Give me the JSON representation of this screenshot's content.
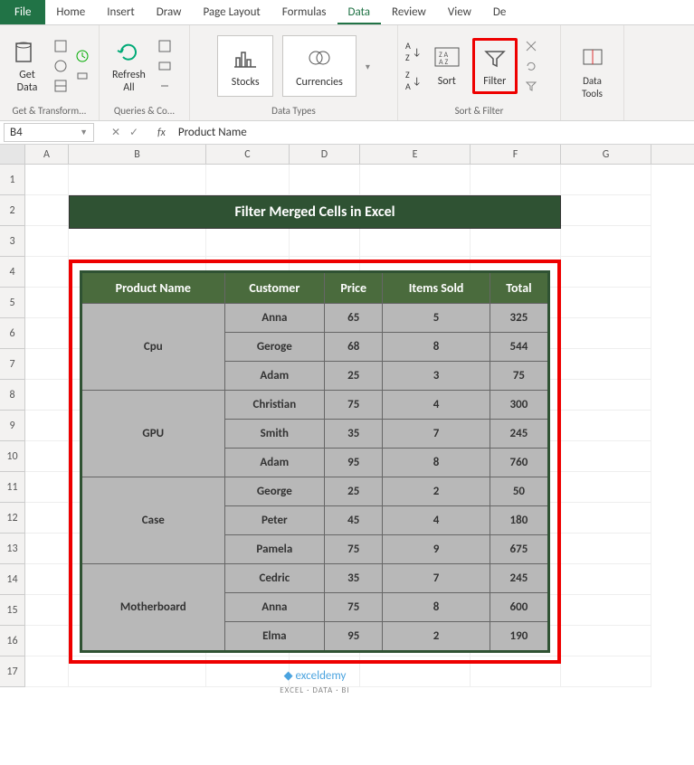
{
  "tabs": {
    "file": "File",
    "items": [
      "Home",
      "Insert",
      "Draw",
      "Page Layout",
      "Formulas",
      "Data",
      "Review",
      "View",
      "De"
    ],
    "active": "Data"
  },
  "ribbon": {
    "groups": {
      "getTransform": {
        "label": "Get & Transform...",
        "getData": "Get\nData"
      },
      "queries": {
        "label": "Queries & Co...",
        "refresh": "Refresh\nAll"
      },
      "dataTypes": {
        "label": "Data Types",
        "stocks": "Stocks",
        "currencies": "Currencies"
      },
      "sortFilter": {
        "label": "Sort & Filter",
        "sortAZ": "A→Z",
        "sortZA": "Z→A",
        "sort": "Sort",
        "filter": "Filter"
      },
      "dataTools": {
        "label": "Data Tools"
      }
    }
  },
  "formulaBar": {
    "cellRef": "B4",
    "fx": "fx",
    "value": "Product Name"
  },
  "columns": [
    "A",
    "B",
    "C",
    "D",
    "E",
    "F",
    "G"
  ],
  "rows": [
    1,
    2,
    3,
    4,
    5,
    6,
    7,
    8,
    9,
    10,
    11,
    12,
    13,
    14,
    15,
    16,
    17
  ],
  "banner": "Filter Merged Cells in Excel",
  "table": {
    "headers": [
      "Product Name",
      "Customer",
      "Price",
      "Items Sold",
      "Total"
    ],
    "groups": [
      {
        "product": "Cpu",
        "rows": [
          {
            "customer": "Anna",
            "price": 65,
            "items": 5,
            "total": 325
          },
          {
            "customer": "Geroge",
            "price": 68,
            "items": 8,
            "total": 544
          },
          {
            "customer": "Adam",
            "price": 25,
            "items": 3,
            "total": 75
          }
        ]
      },
      {
        "product": "GPU",
        "rows": [
          {
            "customer": "Christian",
            "price": 75,
            "items": 4,
            "total": 300
          },
          {
            "customer": "Smith",
            "price": 35,
            "items": 7,
            "total": 245
          },
          {
            "customer": "Adam",
            "price": 95,
            "items": 8,
            "total": 760
          }
        ]
      },
      {
        "product": "Case",
        "rows": [
          {
            "customer": "George",
            "price": 25,
            "items": 2,
            "total": 50
          },
          {
            "customer": "Peter",
            "price": 45,
            "items": 4,
            "total": 180
          },
          {
            "customer": "Pamela",
            "price": 75,
            "items": 9,
            "total": 675
          }
        ]
      },
      {
        "product": "Motherboard",
        "rows": [
          {
            "customer": "Cedric",
            "price": 35,
            "items": 7,
            "total": 245
          },
          {
            "customer": "Anna",
            "price": 75,
            "items": 8,
            "total": 600
          },
          {
            "customer": "Elma",
            "price": 95,
            "items": 2,
            "total": 190
          }
        ]
      }
    ]
  },
  "watermark": {
    "brand": "exceldemy",
    "sub": "EXCEL · DATA · BI"
  },
  "colors": {
    "excelGreen": "#217346",
    "bannerBg": "#2f5233",
    "headerBg": "#4a6b3d",
    "cellBg": "#b8b8b8",
    "highlight": "#e00",
    "ribbonBg": "#f3f2f1"
  }
}
